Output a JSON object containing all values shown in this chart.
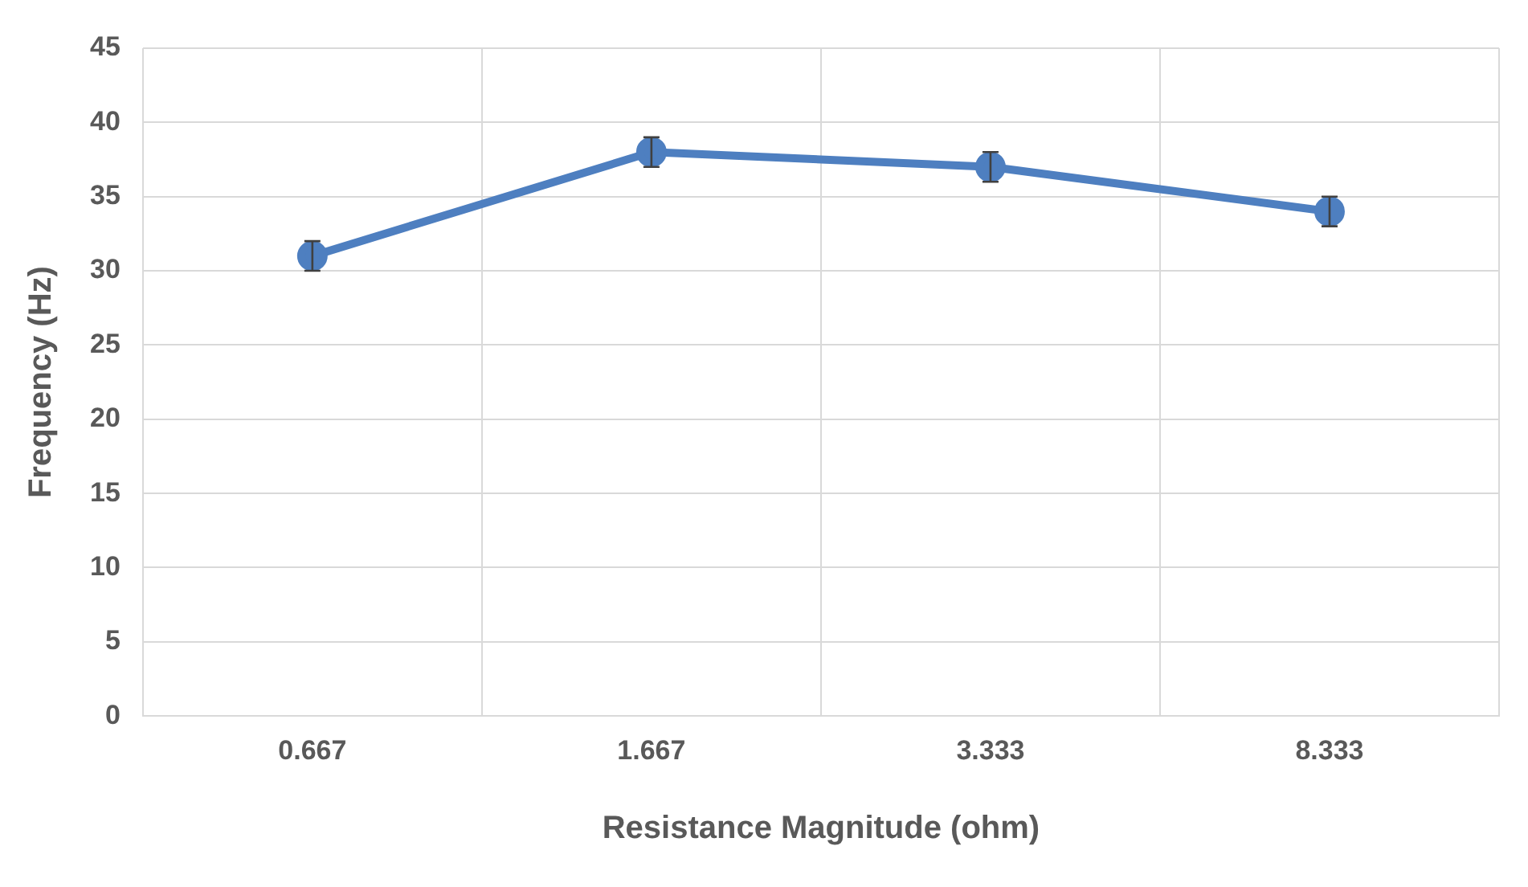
{
  "chart_data": {
    "type": "line",
    "xlabel": "Resistance Magnitude (ohm)",
    "ylabel": "Frequency (Hz)",
    "categories": [
      "0.667",
      "1.667",
      "3.333",
      "8.333"
    ],
    "series": [
      {
        "color": "#4e7fc0",
        "values": [
          31,
          38,
          37,
          34
        ],
        "errors": [
          1,
          1,
          1,
          1
        ]
      }
    ],
    "ylim": [
      0,
      45
    ],
    "yticks": [
      0,
      5,
      10,
      15,
      20,
      25,
      30,
      35,
      40,
      45
    ],
    "grid": true,
    "legend": false,
    "marker": "circle",
    "line_style": "solid"
  }
}
